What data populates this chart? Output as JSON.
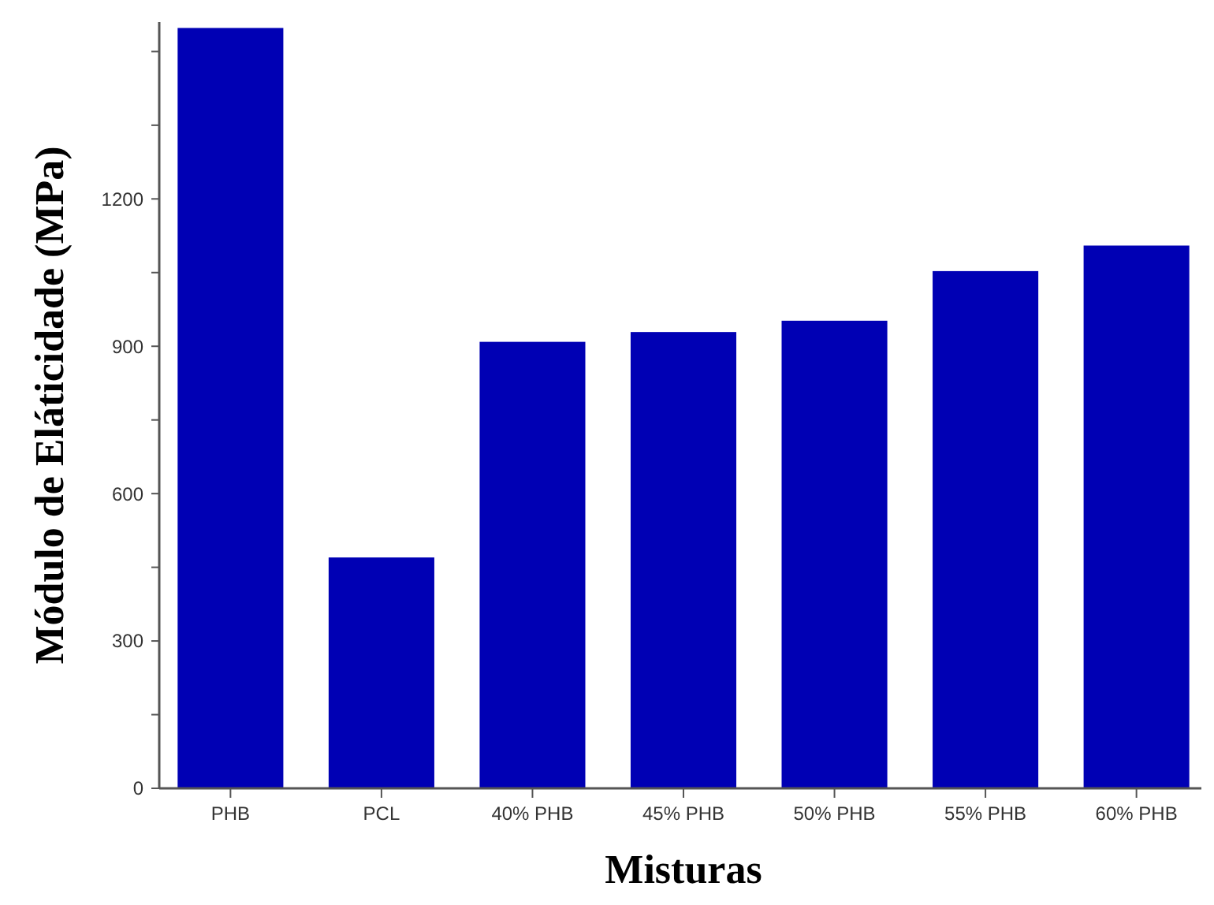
{
  "chart_data": {
    "type": "bar",
    "xlabel": "Misturas",
    "ylabel": "Módulo de Eláticidade (MPa)",
    "categories": [
      "PHB",
      "PCL",
      "40% PHB",
      "45% PHB",
      "50% PHB",
      "55% PHB",
      "60% PHB"
    ],
    "values": [
      1548,
      470,
      909,
      929,
      952,
      1053,
      1105
    ],
    "color": "#0000b4",
    "ylim": [
      0,
      1560
    ],
    "yticks": [
      0,
      {
        "value": 150,
        "label": null
      },
      300,
      {
        "value": 450,
        "label": null
      },
      600,
      {
        "value": 750,
        "label": null
      },
      900,
      {
        "value": 1050,
        "label": null
      },
      1200,
      {
        "value": 1350,
        "label": null
      },
      {
        "value": 1500,
        "label": null
      }
    ]
  }
}
